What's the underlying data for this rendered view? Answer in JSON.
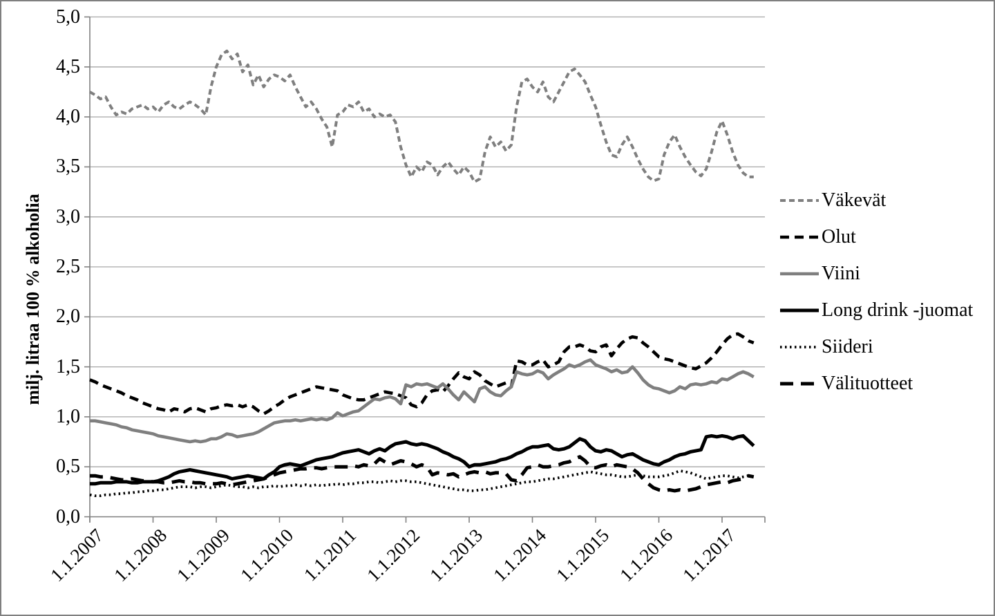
{
  "figure": {
    "background": "#ffffff",
    "border_color": "#7f7f7f",
    "gridline_color": "#a6a6a6",
    "axis_color": "#808080"
  },
  "y_axis": {
    "title": "milj. litraa 100 % alkoholia",
    "min": 0,
    "max": 5,
    "step": 0.5,
    "tick_labels": [
      "0,0",
      "0,5",
      "1,0",
      "1,5",
      "2,0",
      "2,5",
      "3,0",
      "3,5",
      "4,0",
      "4,5",
      "5,0"
    ]
  },
  "x_axis": {
    "tick_labels": [
      "1.1.2007",
      "1.1.2008",
      "1.1.2009",
      "1.1.2010",
      "1.1.2011",
      "1.1.2012",
      "1.1.2013",
      "1.1.2014",
      "1.1.2015",
      "1.1.2016",
      "1.1.2017"
    ]
  },
  "chart_data": {
    "type": "line",
    "title": "",
    "xlabel": "",
    "ylabel": "milj. litraa 100 % alkoholia",
    "ylim": [
      0,
      5
    ],
    "grid": "horizontal",
    "legend_position": "right",
    "x_start": "1.1.2007",
    "x_end": "1.7.2017",
    "x_frequency": "monthly",
    "points_per_series": 127,
    "series": [
      {
        "id": "vakevat",
        "name": "Väkevät",
        "color": "#7f7f7f",
        "line_style": "dashed",
        "values": [
          4.25,
          4.22,
          4.18,
          4.2,
          4.1,
          4.02,
          4.05,
          4.03,
          4.08,
          4.1,
          4.12,
          4.08,
          4.1,
          4.05,
          4.12,
          4.15,
          4.1,
          4.08,
          4.12,
          4.15,
          4.12,
          4.08,
          4.02,
          4.3,
          4.5,
          4.62,
          4.66,
          4.58,
          4.63,
          4.45,
          4.52,
          4.32,
          4.42,
          4.3,
          4.38,
          4.42,
          4.4,
          4.36,
          4.42,
          4.3,
          4.2,
          4.1,
          4.15,
          4.08,
          3.98,
          3.9,
          3.7,
          4.02,
          4.05,
          4.12,
          4.1,
          4.15,
          4.05,
          4.08,
          4.0,
          4.03,
          4.0,
          4.02,
          3.95,
          3.7,
          3.52,
          3.4,
          3.5,
          3.45,
          3.55,
          3.52,
          3.42,
          3.5,
          3.55,
          3.48,
          3.42,
          3.5,
          3.45,
          3.35,
          3.38,
          3.65,
          3.8,
          3.7,
          3.75,
          3.66,
          3.72,
          4.1,
          4.35,
          4.38,
          4.3,
          4.25,
          4.35,
          4.2,
          4.15,
          4.25,
          4.35,
          4.45,
          4.48,
          4.42,
          4.35,
          4.22,
          4.1,
          3.92,
          3.75,
          3.62,
          3.6,
          3.72,
          3.8,
          3.7,
          3.58,
          3.48,
          3.4,
          3.36,
          3.38,
          3.62,
          3.75,
          3.82,
          3.7,
          3.6,
          3.52,
          3.45,
          3.41,
          3.48,
          3.65,
          3.85,
          3.96,
          3.82,
          3.65,
          3.52,
          3.44,
          3.4,
          3.4
        ]
      },
      {
        "id": "olut",
        "name": "Olut",
        "color": "#000000",
        "line_style": "dashed",
        "values": [
          1.37,
          1.35,
          1.32,
          1.3,
          1.28,
          1.26,
          1.24,
          1.21,
          1.19,
          1.17,
          1.14,
          1.12,
          1.1,
          1.08,
          1.07,
          1.05,
          1.08,
          1.07,
          1.05,
          1.08,
          1.09,
          1.07,
          1.05,
          1.08,
          1.09,
          1.11,
          1.12,
          1.11,
          1.12,
          1.1,
          1.12,
          1.1,
          1.06,
          1.03,
          1.06,
          1.1,
          1.13,
          1.17,
          1.2,
          1.22,
          1.24,
          1.26,
          1.28,
          1.3,
          1.29,
          1.28,
          1.27,
          1.26,
          1.22,
          1.2,
          1.18,
          1.17,
          1.17,
          1.19,
          1.21,
          1.23,
          1.25,
          1.24,
          1.23,
          1.21,
          1.19,
          1.12,
          1.1,
          1.14,
          1.22,
          1.26,
          1.27,
          1.25,
          1.31,
          1.38,
          1.44,
          1.4,
          1.38,
          1.45,
          1.42,
          1.36,
          1.33,
          1.3,
          1.32,
          1.34,
          1.3,
          1.56,
          1.55,
          1.52,
          1.52,
          1.55,
          1.57,
          1.5,
          1.52,
          1.55,
          1.65,
          1.7,
          1.7,
          1.72,
          1.7,
          1.66,
          1.65,
          1.7,
          1.72,
          1.61,
          1.68,
          1.74,
          1.78,
          1.8,
          1.79,
          1.74,
          1.7,
          1.65,
          1.6,
          1.58,
          1.57,
          1.55,
          1.53,
          1.51,
          1.49,
          1.48,
          1.51,
          1.54,
          1.59,
          1.65,
          1.72,
          1.78,
          1.82,
          1.83,
          1.8,
          1.76,
          1.74
        ]
      },
      {
        "id": "viini",
        "name": "Viini",
        "color": "#7f7f7f",
        "line_style": "solid",
        "values": [
          0.96,
          0.96,
          0.95,
          0.94,
          0.93,
          0.92,
          0.9,
          0.89,
          0.87,
          0.86,
          0.85,
          0.84,
          0.83,
          0.81,
          0.8,
          0.79,
          0.78,
          0.77,
          0.76,
          0.75,
          0.76,
          0.75,
          0.76,
          0.78,
          0.78,
          0.8,
          0.83,
          0.82,
          0.8,
          0.81,
          0.82,
          0.83,
          0.85,
          0.88,
          0.91,
          0.94,
          0.95,
          0.96,
          0.96,
          0.97,
          0.96,
          0.97,
          0.98,
          0.97,
          0.98,
          0.97,
          0.99,
          1.04,
          1.01,
          1.03,
          1.05,
          1.06,
          1.1,
          1.14,
          1.18,
          1.17,
          1.19,
          1.2,
          1.18,
          1.13,
          1.32,
          1.3,
          1.33,
          1.32,
          1.33,
          1.31,
          1.29,
          1.33,
          1.28,
          1.22,
          1.17,
          1.25,
          1.2,
          1.15,
          1.28,
          1.3,
          1.25,
          1.22,
          1.21,
          1.26,
          1.3,
          1.45,
          1.43,
          1.42,
          1.43,
          1.46,
          1.44,
          1.38,
          1.42,
          1.45,
          1.48,
          1.52,
          1.5,
          1.52,
          1.55,
          1.57,
          1.52,
          1.5,
          1.48,
          1.45,
          1.47,
          1.44,
          1.45,
          1.5,
          1.44,
          1.37,
          1.32,
          1.29,
          1.28,
          1.26,
          1.24,
          1.26,
          1.3,
          1.28,
          1.32,
          1.33,
          1.32,
          1.33,
          1.35,
          1.34,
          1.38,
          1.37,
          1.4,
          1.43,
          1.45,
          1.43,
          1.4
        ]
      },
      {
        "id": "long-drink-juomat",
        "name": "Long drink -juomat",
        "color": "#000000",
        "line_style": "solid",
        "values": [
          0.33,
          0.33,
          0.34,
          0.34,
          0.34,
          0.35,
          0.35,
          0.35,
          0.34,
          0.34,
          0.35,
          0.35,
          0.35,
          0.36,
          0.38,
          0.4,
          0.43,
          0.45,
          0.46,
          0.47,
          0.46,
          0.45,
          0.44,
          0.43,
          0.42,
          0.41,
          0.4,
          0.38,
          0.39,
          0.4,
          0.41,
          0.4,
          0.39,
          0.38,
          0.42,
          0.45,
          0.5,
          0.52,
          0.53,
          0.52,
          0.51,
          0.53,
          0.55,
          0.57,
          0.58,
          0.59,
          0.6,
          0.62,
          0.64,
          0.65,
          0.66,
          0.67,
          0.65,
          0.63,
          0.66,
          0.68,
          0.66,
          0.7,
          0.73,
          0.74,
          0.75,
          0.73,
          0.72,
          0.73,
          0.72,
          0.7,
          0.68,
          0.65,
          0.63,
          0.6,
          0.58,
          0.55,
          0.5,
          0.52,
          0.52,
          0.53,
          0.54,
          0.55,
          0.57,
          0.58,
          0.6,
          0.63,
          0.65,
          0.68,
          0.7,
          0.7,
          0.71,
          0.72,
          0.68,
          0.67,
          0.68,
          0.7,
          0.74,
          0.78,
          0.76,
          0.7,
          0.66,
          0.65,
          0.67,
          0.66,
          0.63,
          0.6,
          0.62,
          0.63,
          0.6,
          0.57,
          0.55,
          0.53,
          0.52,
          0.55,
          0.57,
          0.6,
          0.62,
          0.63,
          0.65,
          0.66,
          0.67,
          0.8,
          0.81,
          0.8,
          0.81,
          0.8,
          0.78,
          0.8,
          0.81,
          0.76,
          0.71
        ]
      },
      {
        "id": "siideri",
        "name": "Siideri",
        "color": "#000000",
        "line_style": "dotted",
        "values": [
          0.22,
          0.21,
          0.21,
          0.22,
          0.22,
          0.23,
          0.23,
          0.24,
          0.24,
          0.25,
          0.25,
          0.26,
          0.26,
          0.27,
          0.27,
          0.28,
          0.29,
          0.3,
          0.3,
          0.3,
          0.29,
          0.3,
          0.3,
          0.29,
          0.3,
          0.31,
          0.32,
          0.31,
          0.3,
          0.3,
          0.29,
          0.3,
          0.29,
          0.3,
          0.3,
          0.31,
          0.3,
          0.31,
          0.31,
          0.32,
          0.31,
          0.32,
          0.31,
          0.32,
          0.31,
          0.32,
          0.32,
          0.33,
          0.32,
          0.33,
          0.33,
          0.34,
          0.34,
          0.35,
          0.35,
          0.34,
          0.35,
          0.36,
          0.35,
          0.36,
          0.36,
          0.35,
          0.35,
          0.34,
          0.33,
          0.32,
          0.31,
          0.3,
          0.29,
          0.28,
          0.27,
          0.27,
          0.26,
          0.26,
          0.27,
          0.27,
          0.28,
          0.29,
          0.3,
          0.31,
          0.32,
          0.33,
          0.34,
          0.35,
          0.35,
          0.36,
          0.37,
          0.38,
          0.38,
          0.39,
          0.4,
          0.41,
          0.42,
          0.43,
          0.44,
          0.45,
          0.44,
          0.43,
          0.42,
          0.42,
          0.41,
          0.4,
          0.4,
          0.41,
          0.42,
          0.41,
          0.4,
          0.4,
          0.4,
          0.41,
          0.42,
          0.44,
          0.46,
          0.45,
          0.44,
          0.42,
          0.4,
          0.38,
          0.39,
          0.4,
          0.41,
          0.41,
          0.4,
          0.39,
          0.4,
          0.41,
          0.4
        ]
      },
      {
        "id": "valituotteet",
        "name": "Välituotteet",
        "color": "#000000",
        "line_style": "long-dashed",
        "values": [
          0.41,
          0.41,
          0.4,
          0.4,
          0.39,
          0.38,
          0.37,
          0.37,
          0.38,
          0.37,
          0.36,
          0.36,
          0.35,
          0.35,
          0.34,
          0.34,
          0.35,
          0.36,
          0.35,
          0.35,
          0.34,
          0.34,
          0.33,
          0.33,
          0.33,
          0.34,
          0.33,
          0.32,
          0.33,
          0.34,
          0.35,
          0.36,
          0.37,
          0.38,
          0.4,
          0.42,
          0.44,
          0.45,
          0.46,
          0.47,
          0.48,
          0.48,
          0.49,
          0.49,
          0.48,
          0.49,
          0.5,
          0.5,
          0.5,
          0.5,
          0.51,
          0.5,
          0.52,
          0.51,
          0.53,
          0.58,
          0.55,
          0.52,
          0.54,
          0.56,
          0.55,
          0.53,
          0.5,
          0.52,
          0.5,
          0.42,
          0.44,
          0.43,
          0.42,
          0.43,
          0.4,
          0.42,
          0.44,
          0.45,
          0.44,
          0.45,
          0.43,
          0.44,
          0.44,
          0.43,
          0.37,
          0.36,
          0.42,
          0.49,
          0.5,
          0.52,
          0.5,
          0.5,
          0.51,
          0.52,
          0.54,
          0.55,
          0.58,
          0.6,
          0.56,
          0.5,
          0.49,
          0.51,
          0.52,
          0.5,
          0.52,
          0.51,
          0.5,
          0.48,
          0.44,
          0.38,
          0.33,
          0.29,
          0.27,
          0.26,
          0.27,
          0.26,
          0.27,
          0.26,
          0.27,
          0.28,
          0.3,
          0.32,
          0.33,
          0.34,
          0.35,
          0.34,
          0.36,
          0.37,
          0.38,
          0.41,
          0.4
        ]
      }
    ]
  }
}
